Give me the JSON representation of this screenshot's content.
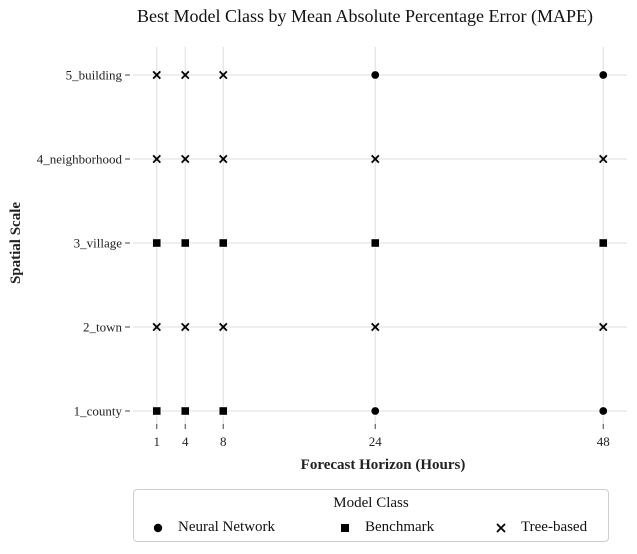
{
  "chart_data": {
    "type": "scatter",
    "title": "Best Model Class by Mean Absolute Percentage Error (MAPE)",
    "xlabel": "Forecast Horizon (Hours)",
    "ylabel": "Spatial Scale",
    "x_ticks": [
      1,
      4,
      8,
      24,
      48
    ],
    "x_tick_labels": [
      "1",
      "4",
      "8",
      "24",
      "48"
    ],
    "y_categories": [
      "1_county",
      "2_town",
      "3_village",
      "4_neighborhood",
      "5_building"
    ],
    "xlim": [
      -1.5,
      50.5
    ],
    "grid": true,
    "legend": {
      "title": "Model Class",
      "placement": "bottom-center",
      "entries": [
        {
          "label": "Neural Network",
          "marker": "circle"
        },
        {
          "label": "Benchmark",
          "marker": "square"
        },
        {
          "label": "Tree-based",
          "marker": "x"
        }
      ]
    },
    "points": [
      {
        "x": 1,
        "y": "1_county",
        "class": "Benchmark"
      },
      {
        "x": 4,
        "y": "1_county",
        "class": "Benchmark"
      },
      {
        "x": 8,
        "y": "1_county",
        "class": "Benchmark"
      },
      {
        "x": 24,
        "y": "1_county",
        "class": "Neural Network"
      },
      {
        "x": 48,
        "y": "1_county",
        "class": "Neural Network"
      },
      {
        "x": 1,
        "y": "2_town",
        "class": "Tree-based"
      },
      {
        "x": 4,
        "y": "2_town",
        "class": "Tree-based"
      },
      {
        "x": 8,
        "y": "2_town",
        "class": "Tree-based"
      },
      {
        "x": 24,
        "y": "2_town",
        "class": "Tree-based"
      },
      {
        "x": 48,
        "y": "2_town",
        "class": "Tree-based"
      },
      {
        "x": 1,
        "y": "3_village",
        "class": "Benchmark"
      },
      {
        "x": 4,
        "y": "3_village",
        "class": "Benchmark"
      },
      {
        "x": 8,
        "y": "3_village",
        "class": "Benchmark"
      },
      {
        "x": 24,
        "y": "3_village",
        "class": "Benchmark"
      },
      {
        "x": 48,
        "y": "3_village",
        "class": "Benchmark"
      },
      {
        "x": 1,
        "y": "4_neighborhood",
        "class": "Tree-based"
      },
      {
        "x": 4,
        "y": "4_neighborhood",
        "class": "Tree-based"
      },
      {
        "x": 8,
        "y": "4_neighborhood",
        "class": "Tree-based"
      },
      {
        "x": 24,
        "y": "4_neighborhood",
        "class": "Tree-based"
      },
      {
        "x": 48,
        "y": "4_neighborhood",
        "class": "Tree-based"
      },
      {
        "x": 1,
        "y": "5_building",
        "class": "Tree-based"
      },
      {
        "x": 4,
        "y": "5_building",
        "class": "Tree-based"
      },
      {
        "x": 8,
        "y": "5_building",
        "class": "Tree-based"
      },
      {
        "x": 24,
        "y": "5_building",
        "class": "Neural Network"
      },
      {
        "x": 48,
        "y": "5_building",
        "class": "Neural Network"
      }
    ]
  }
}
